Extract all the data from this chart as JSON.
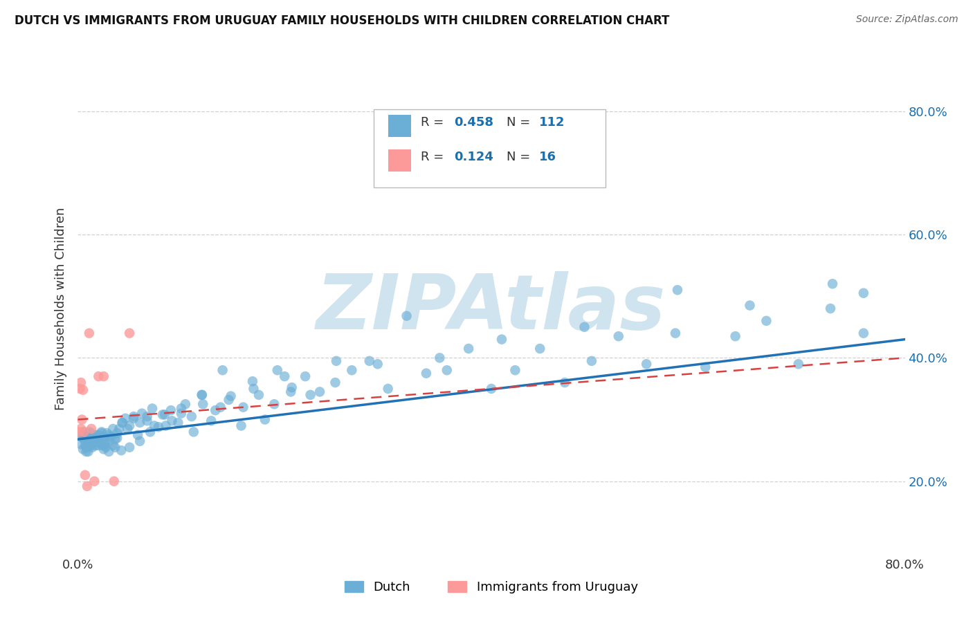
{
  "title": "DUTCH VS IMMIGRANTS FROM URUGUAY FAMILY HOUSEHOLDS WITH CHILDREN CORRELATION CHART",
  "source": "Source: ZipAtlas.com",
  "ylabel": "Family Households with Children",
  "xlim": [
    0.0,
    0.8
  ],
  "ylim": [
    0.08,
    0.88
  ],
  "ytick_positions": [
    0.2,
    0.4,
    0.6,
    0.8
  ],
  "ytick_labels": [
    "20.0%",
    "40.0%",
    "60.0%",
    "80.0%"
  ],
  "xtick_positions": [
    0.0,
    0.1,
    0.2,
    0.3,
    0.4,
    0.5,
    0.6,
    0.7,
    0.8
  ],
  "xtick_labels": [
    "0.0%",
    "",
    "",
    "",
    "",
    "",
    "",
    "",
    "80.0%"
  ],
  "dutch_R": 0.458,
  "dutch_N": 112,
  "uruguay_R": 0.124,
  "uruguay_N": 16,
  "dutch_color": "#6baed6",
  "uruguay_color": "#fb9a99",
  "dutch_line_color": "#2171b5",
  "uruguay_line_color": "#d94040",
  "background_color": "#ffffff",
  "watermark": "ZIPAtlas",
  "watermark_color": "#d0e4f0",
  "accent_color": "#1a6faf",
  "grid_color": "#cccccc",
  "title_color": "#111111",
  "source_color": "#666666",
  "dutch_x": [
    0.003,
    0.004,
    0.005,
    0.005,
    0.006,
    0.007,
    0.007,
    0.008,
    0.008,
    0.009,
    0.009,
    0.01,
    0.011,
    0.012,
    0.013,
    0.014,
    0.015,
    0.016,
    0.017,
    0.018,
    0.019,
    0.02,
    0.021,
    0.022,
    0.023,
    0.024,
    0.025,
    0.026,
    0.027,
    0.028,
    0.03,
    0.032,
    0.034,
    0.036,
    0.038,
    0.04,
    0.043,
    0.046,
    0.05,
    0.054,
    0.058,
    0.062,
    0.067,
    0.072,
    0.078,
    0.084,
    0.09,
    0.097,
    0.104,
    0.112,
    0.12,
    0.129,
    0.138,
    0.148,
    0.158,
    0.169,
    0.181,
    0.193,
    0.206,
    0.22,
    0.234,
    0.249,
    0.265,
    0.282,
    0.3,
    0.318,
    0.337,
    0.357,
    0.378,
    0.4,
    0.423,
    0.447,
    0.471,
    0.497,
    0.523,
    0.55,
    0.578,
    0.607,
    0.636,
    0.666,
    0.697,
    0.728,
    0.76,
    0.01,
    0.011,
    0.013,
    0.015,
    0.018,
    0.02,
    0.023,
    0.026,
    0.03,
    0.034,
    0.038,
    0.043,
    0.048,
    0.054,
    0.06,
    0.067,
    0.074,
    0.082,
    0.091,
    0.1,
    0.11,
    0.121,
    0.133,
    0.146,
    0.16,
    0.175,
    0.19,
    0.207,
    0.225
  ],
  "dutch_y": [
    0.26,
    0.275,
    0.252,
    0.27,
    0.28,
    0.258,
    0.268,
    0.248,
    0.278,
    0.255,
    0.265,
    0.272,
    0.268,
    0.262,
    0.278,
    0.255,
    0.265,
    0.272,
    0.258,
    0.27,
    0.265,
    0.275,
    0.262,
    0.268,
    0.28,
    0.258,
    0.272,
    0.265,
    0.255,
    0.278,
    0.265,
    0.272,
    0.258,
    0.268,
    0.278,
    0.285,
    0.295,
    0.302,
    0.29,
    0.305,
    0.275,
    0.31,
    0.298,
    0.318,
    0.288,
    0.308,
    0.315,
    0.295,
    0.325,
    0.28,
    0.34,
    0.298,
    0.32,
    0.338,
    0.29,
    0.362,
    0.3,
    0.38,
    0.345,
    0.37,
    0.345,
    0.36,
    0.38,
    0.395,
    0.35,
    0.468,
    0.375,
    0.38,
    0.415,
    0.35,
    0.38,
    0.415,
    0.36,
    0.395,
    0.435,
    0.39,
    0.44,
    0.385,
    0.435,
    0.46,
    0.39,
    0.48,
    0.44,
    0.27,
    0.28,
    0.258,
    0.268,
    0.275,
    0.265,
    0.278,
    0.26,
    0.275,
    0.285,
    0.27,
    0.295,
    0.285,
    0.302,
    0.295,
    0.305,
    0.29,
    0.308,
    0.298,
    0.318,
    0.305,
    0.325,
    0.315,
    0.332,
    0.32,
    0.34,
    0.325,
    0.352,
    0.34
  ],
  "uruguay_x": [
    0.001,
    0.002,
    0.003,
    0.003,
    0.004,
    0.005,
    0.006,
    0.007,
    0.009,
    0.011,
    0.013,
    0.016,
    0.02,
    0.025,
    0.035,
    0.05
  ],
  "uruguay_y": [
    0.28,
    0.35,
    0.36,
    0.285,
    0.3,
    0.348,
    0.28,
    0.21,
    0.192,
    0.44,
    0.285,
    0.2,
    0.37,
    0.37,
    0.2,
    0.44
  ]
}
